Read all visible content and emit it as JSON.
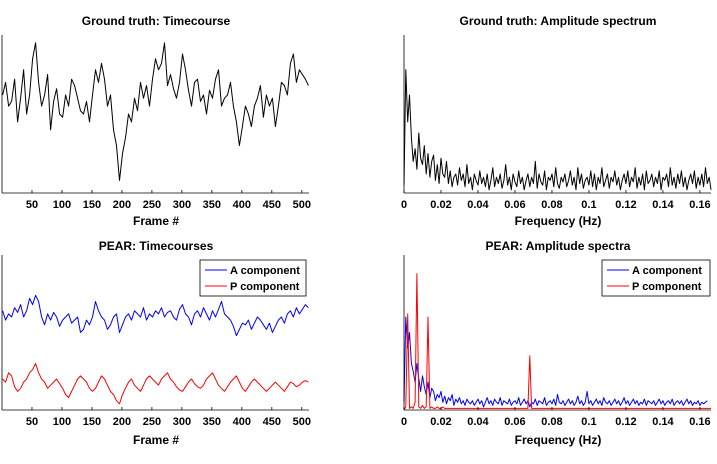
{
  "chart_data": [
    {
      "type": "line",
      "title": "Ground truth: Timecourse",
      "xlabel": "Frame #",
      "ylabel": "",
      "xlim": [
        0,
        512
      ],
      "xticks": [
        50,
        100,
        150,
        200,
        250,
        300,
        350,
        400,
        450,
        500
      ],
      "series": [
        {
          "color": "#000000",
          "x_start": 1,
          "x_step": 5,
          "values": [
            0.62,
            0.7,
            0.55,
            0.58,
            0.72,
            0.45,
            0.6,
            0.78,
            0.5,
            0.62,
            0.85,
            0.95,
            0.7,
            0.55,
            0.62,
            0.75,
            0.4,
            0.58,
            0.66,
            0.5,
            0.48,
            0.62,
            0.55,
            0.72,
            0.68,
            0.6,
            0.52,
            0.5,
            0.58,
            0.45,
            0.62,
            0.78,
            0.7,
            0.82,
            0.72,
            0.55,
            0.62,
            0.4,
            0.3,
            0.08,
            0.25,
            0.35,
            0.5,
            0.45,
            0.6,
            0.52,
            0.7,
            0.6,
            0.68,
            0.55,
            0.72,
            0.85,
            0.78,
            0.82,
            0.95,
            0.68,
            0.75,
            0.66,
            0.6,
            0.7,
            0.88,
            0.78,
            0.65,
            0.55,
            0.7,
            0.72,
            0.58,
            0.62,
            0.5,
            0.65,
            0.6,
            0.72,
            0.78,
            0.55,
            0.6,
            0.62,
            0.7,
            0.55,
            0.45,
            0.3,
            0.42,
            0.55,
            0.5,
            0.42,
            0.55,
            0.6,
            0.68,
            0.48,
            0.62,
            0.55,
            0.6,
            0.42,
            0.55,
            0.7,
            0.68,
            0.62,
            0.82,
            0.88,
            0.7,
            0.78,
            0.75,
            0.72,
            0.68
          ]
        }
      ]
    },
    {
      "type": "line",
      "title": "Ground truth: Amplitude spectrum",
      "xlabel": "Frequency (Hz)",
      "ylabel": "",
      "xlim": [
        0,
        0.166
      ],
      "xticks": [
        0,
        0.02,
        0.04,
        0.06,
        0.08,
        0.1,
        0.12,
        0.14,
        0.16
      ],
      "series": [
        {
          "color": "#000000",
          "x_start": 0,
          "x_step": 0.001,
          "values": [
            0.05,
            0.78,
            0.45,
            0.62,
            0.35,
            0.2,
            0.28,
            0.15,
            0.38,
            0.22,
            0.18,
            0.3,
            0.12,
            0.25,
            0.1,
            0.2,
            0.24,
            0.08,
            0.18,
            0.06,
            0.22,
            0.12,
            0.1,
            0.2,
            0.06,
            0.14,
            0.04,
            0.1,
            0.12,
            0.05,
            0.16,
            0.08,
            0.12,
            0.04,
            0.18,
            0.06,
            0.1,
            0.02,
            0.12,
            0.08,
            0.05,
            0.14,
            0.06,
            0.1,
            0.04,
            0.12,
            0.02,
            0.08,
            0.16,
            0.04,
            0.1,
            0.06,
            0.12,
            0.03,
            0.08,
            0.18,
            0.05,
            0.1,
            0.02,
            0.12,
            0.07,
            0.04,
            0.14,
            0.06,
            0.1,
            0.02,
            0.08,
            0.12,
            0.04,
            0.1,
            0.06,
            0.2,
            0.03,
            0.12,
            0.07,
            0.05,
            0.14,
            0.02,
            0.1,
            0.08,
            0.12,
            0.04,
            0.16,
            0.06,
            0.03,
            0.1,
            0.07,
            0.12,
            0.04,
            0.08,
            0.14,
            0.05,
            0.1,
            0.02,
            0.16,
            0.06,
            0.12,
            0.03,
            0.08,
            0.1,
            0.05,
            0.14,
            0.04,
            0.12,
            0.02,
            0.1,
            0.06,
            0.16,
            0.04,
            0.08,
            0.12,
            0.03,
            0.1,
            0.07,
            0.14,
            0.05,
            0.1,
            0.02,
            0.08,
            0.12,
            0.06,
            0.14,
            0.04,
            0.1,
            0.07,
            0.16,
            0.03,
            0.1,
            0.05,
            0.12,
            0.02,
            0.14,
            0.06,
            0.08,
            0.12,
            0.04,
            0.1,
            0.06,
            0.14,
            0.02,
            0.1,
            0.08,
            0.12,
            0.04,
            0.16,
            0.05,
            0.1,
            0.03,
            0.12,
            0.06,
            0.14,
            0.04,
            0.1,
            0.02,
            0.08,
            0.12,
            0.06,
            0.14,
            0.03,
            0.1,
            0.05,
            0.12,
            0.04,
            0.16,
            0.06,
            0.1,
            0.02
          ]
        }
      ]
    },
    {
      "type": "line",
      "title": "PEAR: Timecourses",
      "xlabel": "Frame #",
      "ylabel": "",
      "xlim": [
        0,
        512
      ],
      "xticks": [
        50,
        100,
        150,
        200,
        250,
        300,
        350,
        400,
        450,
        500
      ],
      "legend": "top-right",
      "series": [
        {
          "name": "A component",
          "color": "#0000ff",
          "x_start": 1,
          "x_step": 5,
          "values": [
            0.64,
            0.58,
            0.62,
            0.6,
            0.66,
            0.63,
            0.68,
            0.6,
            0.64,
            0.72,
            0.68,
            0.74,
            0.7,
            0.6,
            0.55,
            0.62,
            0.58,
            0.63,
            0.6,
            0.54,
            0.58,
            0.6,
            0.62,
            0.56,
            0.58,
            0.6,
            0.5,
            0.52,
            0.58,
            0.55,
            0.6,
            0.7,
            0.64,
            0.6,
            0.58,
            0.52,
            0.55,
            0.6,
            0.62,
            0.5,
            0.55,
            0.6,
            0.62,
            0.58,
            0.64,
            0.62,
            0.6,
            0.66,
            0.58,
            0.62,
            0.6,
            0.64,
            0.62,
            0.66,
            0.6,
            0.63,
            0.64,
            0.6,
            0.58,
            0.65,
            0.68,
            0.62,
            0.6,
            0.55,
            0.62,
            0.64,
            0.6,
            0.66,
            0.62,
            0.58,
            0.64,
            0.6,
            0.65,
            0.7,
            0.62,
            0.6,
            0.58,
            0.54,
            0.48,
            0.52,
            0.56,
            0.55,
            0.58,
            0.52,
            0.56,
            0.6,
            0.58,
            0.55,
            0.52,
            0.56,
            0.5,
            0.54,
            0.58,
            0.6,
            0.56,
            0.62,
            0.64,
            0.6,
            0.66,
            0.62,
            0.65,
            0.68,
            0.66
          ]
        },
        {
          "name": "P component",
          "color": "#ff0000",
          "x_start": 1,
          "x_step": 5,
          "values": [
            0.2,
            0.18,
            0.24,
            0.22,
            0.15,
            0.12,
            0.14,
            0.18,
            0.2,
            0.24,
            0.26,
            0.3,
            0.24,
            0.2,
            0.18,
            0.14,
            0.16,
            0.18,
            0.2,
            0.17,
            0.14,
            0.1,
            0.08,
            0.12,
            0.16,
            0.2,
            0.22,
            0.2,
            0.18,
            0.14,
            0.12,
            0.14,
            0.18,
            0.22,
            0.2,
            0.16,
            0.12,
            0.1,
            0.06,
            0.04,
            0.1,
            0.14,
            0.18,
            0.2,
            0.16,
            0.14,
            0.12,
            0.16,
            0.2,
            0.22,
            0.2,
            0.18,
            0.16,
            0.2,
            0.22,
            0.24,
            0.2,
            0.18,
            0.15,
            0.13,
            0.12,
            0.15,
            0.18,
            0.2,
            0.17,
            0.15,
            0.14,
            0.16,
            0.2,
            0.22,
            0.24,
            0.2,
            0.16,
            0.14,
            0.12,
            0.15,
            0.18,
            0.2,
            0.22,
            0.18,
            0.14,
            0.12,
            0.15,
            0.18,
            0.2,
            0.18,
            0.16,
            0.14,
            0.12,
            0.14,
            0.16,
            0.18,
            0.16,
            0.14,
            0.12,
            0.15,
            0.18,
            0.17,
            0.15,
            0.16,
            0.18,
            0.19,
            0.18
          ]
        }
      ]
    },
    {
      "type": "line",
      "title": "PEAR: Amplitude spectra",
      "xlabel": "Frequency (Hz)",
      "ylabel": "",
      "xlim": [
        0,
        0.166
      ],
      "xticks": [
        0,
        0.02,
        0.04,
        0.06,
        0.08,
        0.1,
        0.12,
        0.14,
        0.16
      ],
      "legend": "top-right",
      "series": [
        {
          "name": "A component",
          "color": "#0000ff",
          "x_start": 0,
          "x_step": 0.001,
          "values": [
            0.05,
            0.6,
            0.4,
            0.5,
            0.3,
            0.25,
            0.18,
            0.3,
            0.2,
            0.12,
            0.22,
            0.15,
            0.1,
            0.18,
            0.08,
            0.14,
            0.12,
            0.06,
            0.1,
            0.08,
            0.12,
            0.05,
            0.09,
            0.04,
            0.08,
            0.06,
            0.1,
            0.03,
            0.07,
            0.05,
            0.08,
            0.04,
            0.06,
            0.03,
            0.07,
            0.05,
            0.04,
            0.06,
            0.03,
            0.05,
            0.07,
            0.04,
            0.06,
            0.02,
            0.05,
            0.08,
            0.04,
            0.06,
            0.03,
            0.07,
            0.05,
            0.04,
            0.08,
            0.03,
            0.06,
            0.05,
            0.04,
            0.07,
            0.03,
            0.05,
            0.06,
            0.04,
            0.08,
            0.03,
            0.05,
            0.07,
            0.04,
            0.06,
            0.02,
            0.05,
            0.04,
            0.07,
            0.03,
            0.06,
            0.05,
            0.04,
            0.08,
            0.03,
            0.05,
            0.06,
            0.04,
            0.07,
            0.03,
            0.1,
            0.05,
            0.04,
            0.06,
            0.03,
            0.05,
            0.07,
            0.04,
            0.06,
            0.03,
            0.05,
            0.09,
            0.04,
            0.06,
            0.03,
            0.05,
            0.12,
            0.04,
            0.06,
            0.03,
            0.05,
            0.07,
            0.04,
            0.06,
            0.03,
            0.08,
            0.05,
            0.04,
            0.06,
            0.03,
            0.05,
            0.07,
            0.04,
            0.06,
            0.03,
            0.05,
            0.08,
            0.04,
            0.06,
            0.03,
            0.05,
            0.07,
            0.04,
            0.06,
            0.03,
            0.05,
            0.04,
            0.07,
            0.03,
            0.06,
            0.05,
            0.04,
            0.06,
            0.03,
            0.05,
            0.07,
            0.04,
            0.06,
            0.03,
            0.05,
            0.06,
            0.04,
            0.07,
            0.03,
            0.05,
            0.06,
            0.04,
            0.06,
            0.03,
            0.05,
            0.07,
            0.04,
            0.06,
            0.03,
            0.05,
            0.04,
            0.06,
            0.03,
            0.05,
            0.04,
            0.05,
            0.06
          ]
        },
        {
          "name": "P component",
          "color": "#ff0000",
          "x_start": 0,
          "x_step": 0.001,
          "values": [
            0,
            0.02,
            0.62,
            0.01,
            0.02,
            0.01,
            0.05,
            0.88,
            0.02,
            0.01,
            0.03,
            0.01,
            0.02,
            0.6,
            0.01,
            0.02,
            0.01,
            0.01,
            0.02,
            0.01,
            0.01,
            0.02,
            0.01,
            0.01,
            0.01,
            0.01,
            0.01,
            0.01,
            0.01,
            0.01,
            0.01,
            0.01,
            0.01,
            0.01,
            0.01,
            0.01,
            0.01,
            0.01,
            0.01,
            0.01,
            0.01,
            0.01,
            0.01,
            0.01,
            0.01,
            0.01,
            0.01,
            0.01,
            0.01,
            0.01,
            0.01,
            0.01,
            0.01,
            0.01,
            0.01,
            0.01,
            0.01,
            0.01,
            0.01,
            0.01,
            0.01,
            0.01,
            0.01,
            0.01,
            0.01,
            0.01,
            0.01,
            0.01,
            0.35,
            0.01,
            0.01,
            0.01,
            0.01,
            0.01,
            0.01,
            0.01,
            0.01,
            0.01,
            0.01,
            0.01,
            0.01,
            0.01,
            0.01,
            0.01,
            0.01,
            0.01,
            0.01,
            0.01,
            0.01,
            0.01,
            0.01,
            0.01,
            0.01,
            0.01,
            0.01,
            0.01,
            0.01,
            0.01,
            0.01,
            0.01,
            0.01,
            0.01,
            0.01,
            0.01,
            0.01,
            0.01,
            0.01,
            0.01,
            0.01,
            0.01,
            0.01,
            0.01,
            0.01,
            0.01,
            0.01,
            0.01,
            0.01,
            0.01,
            0.01,
            0.01,
            0.01,
            0.01,
            0.01,
            0.01,
            0.01,
            0.01,
            0.01,
            0.01,
            0.01,
            0.01,
            0.01,
            0.01,
            0.01,
            0.01,
            0.01,
            0.01,
            0.01,
            0.01,
            0.01,
            0.01,
            0.01,
            0.01,
            0.01,
            0.01,
            0.01,
            0.01,
            0.01,
            0.01,
            0.01,
            0.01,
            0.01,
            0.01,
            0.01,
            0.01,
            0.01,
            0.01,
            0.01,
            0.01,
            0.01,
            0.01,
            0.01,
            0.01,
            0.01,
            0.01,
            0.01,
            0.01,
            0.01
          ]
        }
      ]
    }
  ]
}
